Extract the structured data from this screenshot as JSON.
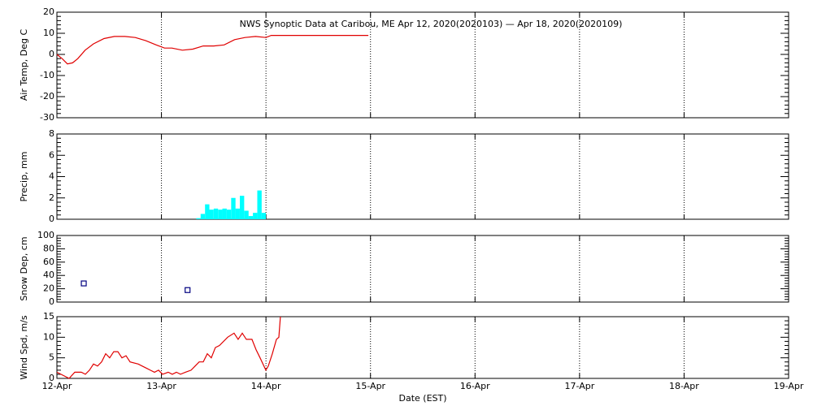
{
  "chart_data": [
    {
      "type": "line",
      "title": "NWS Synoptic Data at Caribou, ME   Apr 12, 2020(2020103) — Apr 18, 2020(2020109)",
      "ylabel": "Air Temp, Deg C",
      "xlim": [
        0,
        7
      ],
      "ylim": [
        -30,
        20
      ],
      "yticks": [
        -30,
        -20,
        -10,
        0,
        10,
        20
      ],
      "series": [
        {
          "color": "#e00000",
          "x": [
            0,
            0.05,
            0.1,
            0.15,
            0.2,
            0.27,
            0.35,
            0.45,
            0.55,
            0.65,
            0.75,
            0.85,
            0.95,
            1.03,
            1.1,
            1.2,
            1.3,
            1.4,
            1.5,
            1.6,
            1.7,
            1.8,
            1.9,
            2.0,
            2.05,
            2.5,
            2.98
          ],
          "values": [
            0,
            -2,
            -4.5,
            -4,
            -2,
            2,
            5,
            7.5,
            8.5,
            8.5,
            8,
            6.5,
            4.5,
            3,
            3,
            2,
            2.5,
            4,
            4,
            4.5,
            7,
            8,
            8.5,
            8,
            9,
            9,
            9
          ]
        }
      ]
    },
    {
      "type": "bar",
      "ylabel": "Precip, mm",
      "xlim": [
        0,
        7
      ],
      "ylim": [
        0,
        8
      ],
      "yticks": [
        0,
        2,
        4,
        6,
        8
      ],
      "series": [
        {
          "color": "#00ffff",
          "x": [
            1.333,
            1.375,
            1.417,
            1.458,
            1.5,
            1.542,
            1.583,
            1.625,
            1.667,
            1.708,
            1.75,
            1.792,
            1.833,
            1.875,
            1.917,
            1.958
          ],
          "values": [
            0.1,
            0.5,
            1.4,
            0.9,
            1.0,
            0.9,
            1.0,
            0.9,
            2.0,
            1.0,
            2.2,
            0.8,
            0.3,
            0.6,
            2.7,
            0.6
          ]
        }
      ]
    },
    {
      "type": "scatter",
      "ylabel": "Snow Dep, cm",
      "xlim": [
        0,
        7
      ],
      "ylim": [
        0,
        100
      ],
      "yticks": [
        0,
        20,
        40,
        60,
        80,
        100
      ],
      "series": [
        {
          "color": "#000080",
          "x": [
            0.257,
            1.25
          ],
          "values": [
            28,
            18
          ]
        }
      ]
    },
    {
      "type": "line",
      "ylabel": "Wind Spd, m/s",
      "xlabel": "Date (EST)",
      "xlim": [
        0,
        7
      ],
      "ylim": [
        0,
        15
      ],
      "yticks": [
        0,
        5,
        10,
        15
      ],
      "xticks": [
        {
          "value": 0,
          "label": "12-Apr"
        },
        {
          "value": 1,
          "label": "13-Apr"
        },
        {
          "value": 2,
          "label": "14-Apr"
        },
        {
          "value": 3,
          "label": "15-Apr"
        },
        {
          "value": 4,
          "label": "16-Apr"
        },
        {
          "value": 5,
          "label": "17-Apr"
        },
        {
          "value": 6,
          "label": "18-Apr"
        },
        {
          "value": 7,
          "label": "19-Apr"
        }
      ],
      "series": [
        {
          "color": "#e00000",
          "x": [
            0,
            0.117,
            0.171,
            0.233,
            0.272,
            0.311,
            0.35,
            0.389,
            0.428,
            0.467,
            0.505,
            0.544,
            0.583,
            0.622,
            0.661,
            0.7,
            0.778,
            0.816,
            0.855,
            0.894,
            0.933,
            0.972,
            1.011,
            1.065,
            1.104,
            1.143,
            1.182,
            1.229,
            1.283,
            1.322,
            1.361,
            1.4,
            1.439,
            1.477,
            1.516,
            1.555,
            1.633,
            1.695,
            1.734,
            1.773,
            1.812,
            1.866,
            1.905,
            1.944,
            1.999,
            2.022,
            2.061,
            2.1,
            2.123,
            2.138
          ],
          "values": [
            1.5,
            0,
            1.5,
            1.5,
            1,
            2,
            3.5,
            3,
            4,
            6,
            5,
            6.5,
            6.5,
            5,
            5.5,
            4,
            3.5,
            3,
            2.5,
            2,
            1.5,
            2,
            1,
            1.5,
            1,
            1.5,
            1,
            1.5,
            2,
            3,
            4,
            4,
            6,
            5,
            7.5,
            8,
            10,
            11,
            9.5,
            11,
            9.5,
            9.5,
            7,
            5,
            2,
            3,
            6,
            9.5,
            10,
            15
          ]
        }
      ]
    }
  ]
}
